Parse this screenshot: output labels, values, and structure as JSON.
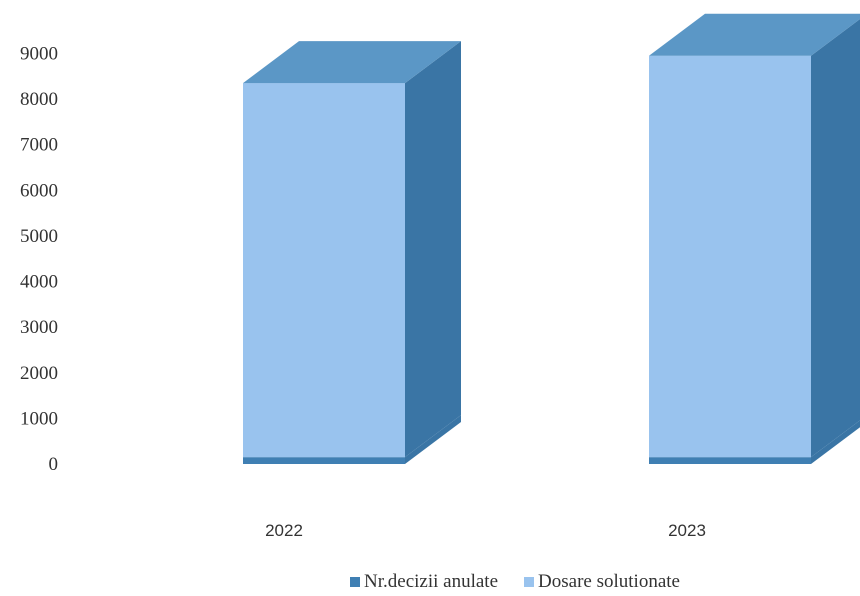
{
  "chart_data": {
    "type": "bar",
    "subtype": "stacked-3d",
    "title": "",
    "xlabel": "",
    "ylabel": "",
    "ylim": [
      0,
      10000
    ],
    "yticks": [
      0,
      1000,
      2000,
      3000,
      4000,
      5000,
      6000,
      7000,
      8000,
      9000
    ],
    "categories": [
      "2022",
      "2023"
    ],
    "series": [
      {
        "name": "Nr.decizii anulate",
        "values": [
          150,
          150
        ],
        "color": "#3f7fb3"
      },
      {
        "name": "Dosare solutionate",
        "values": [
          8200,
          8800
        ],
        "color": "#99c3ee"
      }
    ],
    "grid": false,
    "legend_position": "bottom"
  }
}
